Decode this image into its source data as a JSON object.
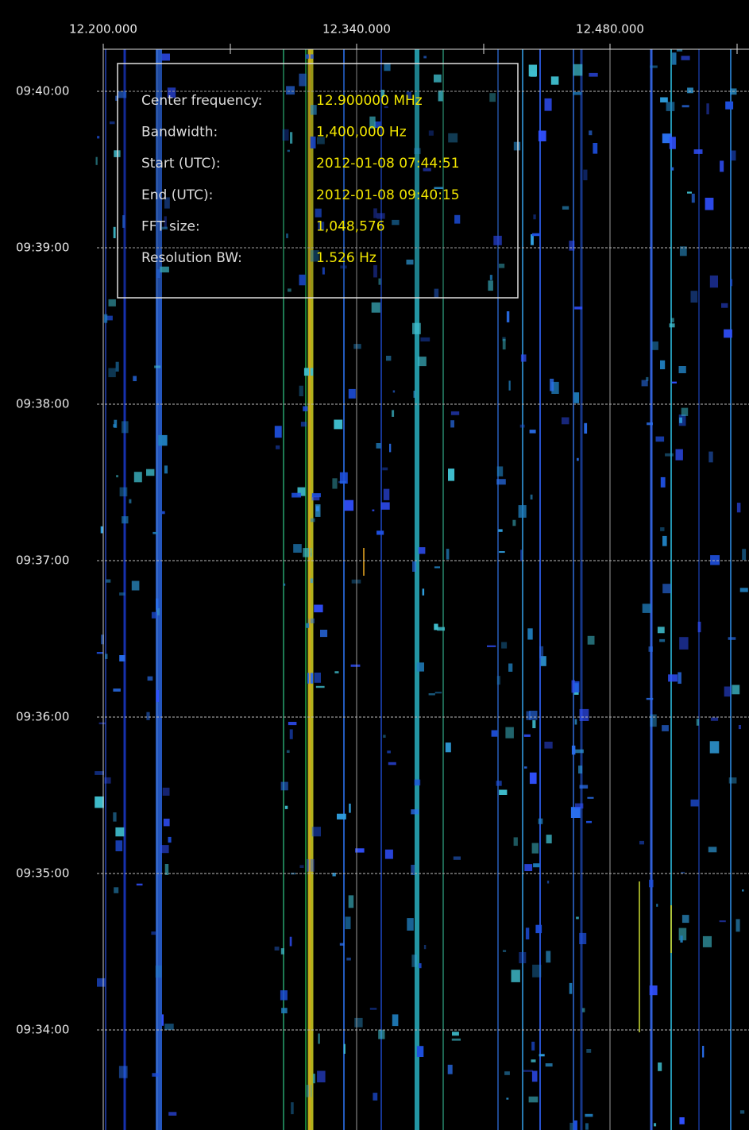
{
  "x_axis": {
    "tick_labels": [
      "12.200.000",
      "12.340.000",
      "12.480.000"
    ]
  },
  "y_axis": {
    "tick_labels": [
      "09:40:00",
      "09:39:00",
      "09:38:00",
      "09:37:00",
      "09:36:00",
      "09:35:00",
      "09:34:00"
    ]
  },
  "info_panel": {
    "rows": [
      {
        "label": "Center frequency:",
        "value": "12.900000 MHz"
      },
      {
        "label": "Bandwidth:",
        "value": "1,400,000 Hz"
      },
      {
        "label": "Start (UTC):",
        "value": "2012-01-08 07:44:51"
      },
      {
        "label": "End (UTC):",
        "value": "2012-01-08 09:40:15"
      },
      {
        "label": "FFT size:",
        "value": "1,048,576"
      },
      {
        "label": "Resolution BW:",
        "value": "1.526 Hz"
      }
    ]
  }
}
